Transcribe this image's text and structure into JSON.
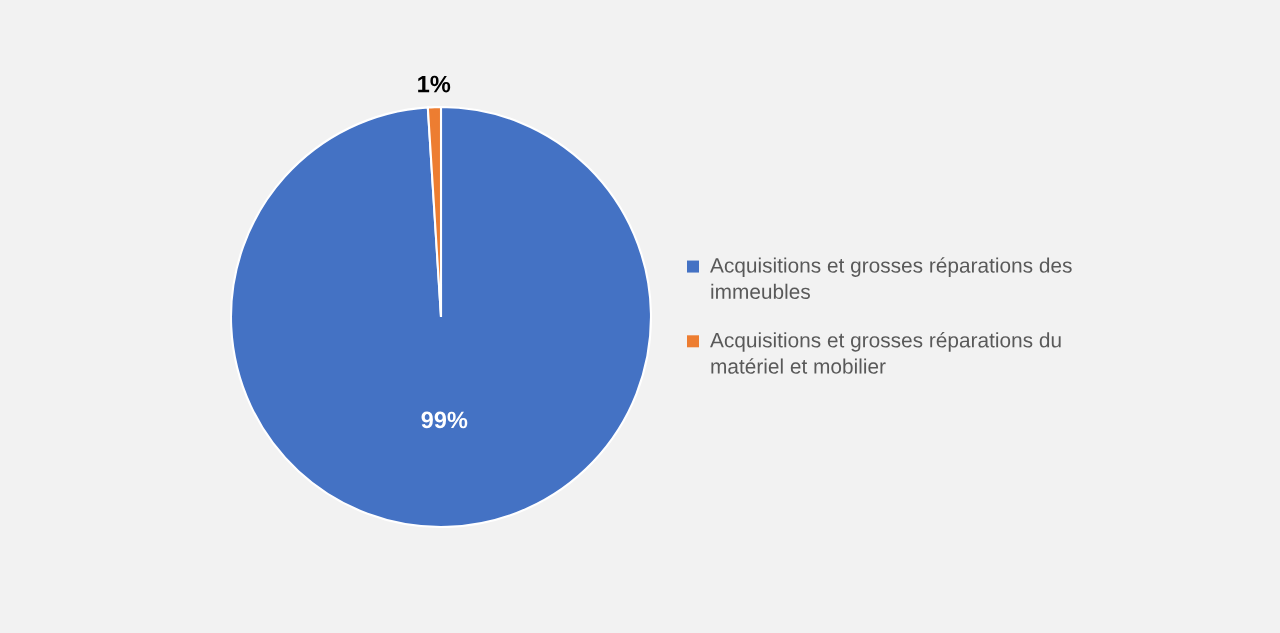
{
  "chart_data": {
    "type": "pie",
    "categories": [
      "Acquisitions et grosses réparations des immeubles",
      "Acquisitions et grosses réparations du matériel et mobilier"
    ],
    "values": [
      99,
      1
    ],
    "colors": [
      "#4472c4",
      "#ed7d31"
    ],
    "value_labels": [
      "99%",
      "1%"
    ],
    "legend": "right"
  }
}
